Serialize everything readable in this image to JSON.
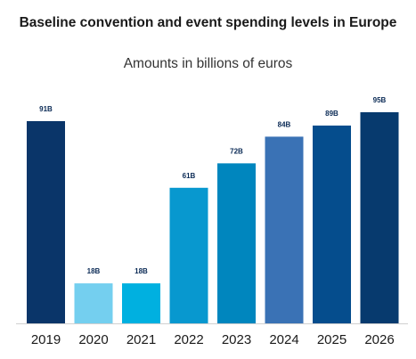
{
  "chart_data": {
    "type": "bar",
    "title": "Baseline convention and event spending levels in Europe",
    "subtitle": "Amounts in billions of euros",
    "categories": [
      "2019",
      "2020",
      "2021",
      "2022",
      "2023",
      "2024",
      "2025",
      "2026"
    ],
    "values": [
      91,
      18,
      18,
      61,
      72,
      84,
      89,
      95
    ],
    "value_labels": [
      "91B",
      "18B",
      "18B",
      "61B",
      "72B",
      "84B",
      "89B",
      "95B"
    ],
    "bar_colors": [
      "#0a3569",
      "#74cfef",
      "#00b0e0",
      "#0898cf",
      "#0086be",
      "#3a72b5",
      "#054d8d",
      "#073a6e"
    ],
    "ylim": [
      0,
      100
    ],
    "grid": false,
    "legend": "none"
  },
  "style": {
    "label_color": "#0a2a55",
    "tick_color": "#1a1a1a",
    "baseline_color": "#d0d0d0"
  }
}
